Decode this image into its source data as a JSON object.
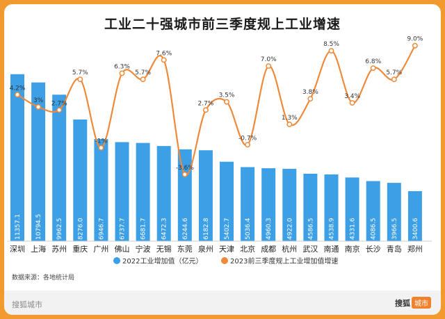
{
  "title": "工业二十强城市前三季度规上工业增速",
  "source": "数据来源：各地统计局",
  "footer": {
    "left": "搜狐城市",
    "logo_main": "搜狐",
    "logo_sub": "城市"
  },
  "colors": {
    "bar": "#3d9fe6",
    "line": "#ef8a3a",
    "frame": "#f39a2e"
  },
  "chart_data": {
    "type": "bar",
    "categories": [
      "深圳",
      "上海",
      "苏州",
      "重庆",
      "广州",
      "佛山",
      "宁波",
      "无锡",
      "东莞",
      "泉州",
      "天津",
      "北京",
      "成都",
      "杭州",
      "武汉",
      "南通",
      "南京",
      "长沙",
      "青岛",
      "郑州"
    ],
    "series": [
      {
        "name": "2022工业增加值（亿元）",
        "type": "bar",
        "values": [
          11357.1,
          10794.5,
          9962.5,
          8276.0,
          6946.7,
          6737.7,
          6681.7,
          6472.3,
          6244.6,
          6182.8,
          5402.7,
          5036.4,
          4960.3,
          4922.0,
          4586.5,
          4538.9,
          4331.6,
          4086.5,
          3966.5,
          3400.6
        ],
        "labels": [
          "11357.1",
          "10794.5",
          "9962.5",
          "8276.0",
          "6946.7",
          "6737.7",
          "6681.7",
          "6472.3",
          "6244.6",
          "6182.8",
          "5402.7",
          "5036.4",
          "4960.3",
          "4922.0",
          "4586.5",
          "4538.9",
          "4331.6",
          "4086.5",
          "3966.5",
          "3400.6"
        ]
      },
      {
        "name": "2023前三季度规上工业增加值增速",
        "type": "line",
        "unit": "%",
        "values": [
          4.2,
          3,
          2.7,
          5.7,
          -1,
          6.3,
          5.7,
          7.6,
          -3.6,
          2.7,
          3.5,
          -0.7,
          7.0,
          1.3,
          3.8,
          8.5,
          3.4,
          6.8,
          5.7,
          9.0
        ],
        "labels": [
          "4.2%",
          "3%",
          "2.7%",
          "5.7%",
          "-1%",
          "6.3%",
          "5.7%",
          "7.6%",
          "-3.6%",
          "2.7%",
          "3.5%",
          "-0.7%",
          "7.0%",
          "1.3%",
          "3.8%",
          "8.5%",
          "3.4%",
          "6.8%",
          "5.7%",
          "9.0%"
        ]
      }
    ],
    "bar_ylim": [
      0,
      13000
    ],
    "line_ylim": [
      -5,
      10
    ],
    "grid": false,
    "legend": "bottom"
  }
}
